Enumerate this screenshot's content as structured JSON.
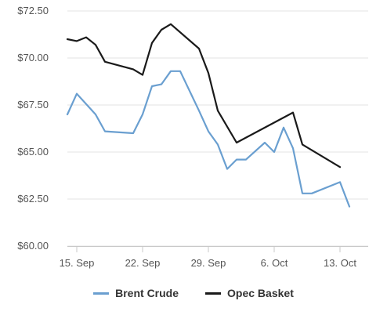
{
  "chart_data": {
    "type": "line",
    "title": "",
    "xlabel": "",
    "ylabel": "",
    "x": [
      "2018-09-14",
      "2018-09-17",
      "2018-09-18",
      "2018-09-19",
      "2018-09-20",
      "2018-09-21",
      "2018-09-24",
      "2018-09-25",
      "2018-09-26",
      "2018-09-27",
      "2018-09-28",
      "2018-10-01",
      "2018-10-02",
      "2018-10-03",
      "2018-10-04",
      "2018-10-05",
      "2018-10-08",
      "2018-10-09",
      "2018-10-10",
      "2018-10-11",
      "2018-10-12",
      "2018-10-15",
      "2018-10-16"
    ],
    "ylim": [
      60,
      72.5
    ],
    "y_ticks": [
      60,
      62.5,
      65,
      67.5,
      70,
      72.5
    ],
    "y_tick_labels": [
      "$60.00",
      "$62.50",
      "$65.00",
      "$67.50",
      "$70.00",
      "$72.50"
    ],
    "x_ticks": [
      "2018-09-15",
      "2018-09-22",
      "2018-09-29",
      "2018-10-06",
      "2018-10-13"
    ],
    "x_tick_labels": [
      "15. Sep",
      "22. Sep",
      "29. Sep",
      "6. Oct",
      "13. Oct"
    ],
    "grid": "horizontal",
    "legend_position": "bottom",
    "series": [
      {
        "name": "Brent Crude",
        "color": "#6a9fd0",
        "points": [
          {
            "x": "2018-09-14",
            "y": 67.0
          },
          {
            "x": "2018-09-15",
            "y": 68.1
          },
          {
            "x": "2018-09-17",
            "y": 67.0
          },
          {
            "x": "2018-09-18",
            "y": 66.1
          },
          {
            "x": "2018-09-21",
            "y": 66.0
          },
          {
            "x": "2018-09-22",
            "y": 67.0
          },
          {
            "x": "2018-09-23",
            "y": 68.5
          },
          {
            "x": "2018-09-24",
            "y": 68.6
          },
          {
            "x": "2018-09-25",
            "y": 69.3
          },
          {
            "x": "2018-09-26",
            "y": 69.3
          },
          {
            "x": "2018-09-28",
            "y": 67.2
          },
          {
            "x": "2018-09-29",
            "y": 66.1
          },
          {
            "x": "2018-09-30",
            "y": 65.4
          },
          {
            "x": "2018-10-01",
            "y": 64.1
          },
          {
            "x": "2018-10-02",
            "y": 64.6
          },
          {
            "x": "2018-10-03",
            "y": 64.6
          },
          {
            "x": "2018-10-05",
            "y": 65.5
          },
          {
            "x": "2018-10-06",
            "y": 65.0
          },
          {
            "x": "2018-10-07",
            "y": 66.3
          },
          {
            "x": "2018-10-08",
            "y": 65.2
          },
          {
            "x": "2018-10-09",
            "y": 62.8
          },
          {
            "x": "2018-10-10",
            "y": 62.8
          },
          {
            "x": "2018-10-13",
            "y": 63.4
          },
          {
            "x": "2018-10-14",
            "y": 62.1
          }
        ]
      },
      {
        "name": "Opec Basket",
        "color": "#1a1a1a",
        "points": [
          {
            "x": "2018-09-14",
            "y": 71.0
          },
          {
            "x": "2018-09-15",
            "y": 70.9
          },
          {
            "x": "2018-09-16",
            "y": 71.1
          },
          {
            "x": "2018-09-17",
            "y": 70.7
          },
          {
            "x": "2018-09-18",
            "y": 69.8
          },
          {
            "x": "2018-09-21",
            "y": 69.4
          },
          {
            "x": "2018-09-22",
            "y": 69.1
          },
          {
            "x": "2018-09-23",
            "y": 70.8
          },
          {
            "x": "2018-09-24",
            "y": 71.5
          },
          {
            "x": "2018-09-25",
            "y": 71.8
          },
          {
            "x": "2018-09-28",
            "y": 70.5
          },
          {
            "x": "2018-09-29",
            "y": 69.2
          },
          {
            "x": "2018-09-30",
            "y": 67.2
          },
          {
            "x": "2018-10-02",
            "y": 65.5
          },
          {
            "x": "2018-10-08",
            "y": 67.1
          },
          {
            "x": "2018-10-09",
            "y": 65.4
          },
          {
            "x": "2018-10-13",
            "y": 64.2
          }
        ]
      }
    ]
  }
}
